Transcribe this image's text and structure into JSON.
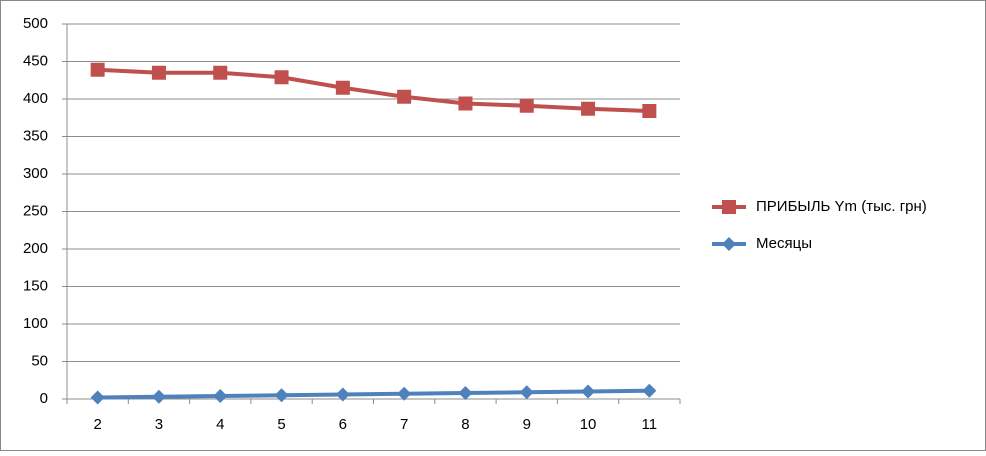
{
  "chart_data": {
    "type": "line",
    "categories": [
      "2",
      "3",
      "4",
      "5",
      "6",
      "7",
      "8",
      "9",
      "10",
      "11"
    ],
    "series": [
      {
        "name": "ПРИБЫЛЬ Ym (тыс. грн)",
        "color": "#c0504d",
        "marker": "square",
        "values": [
          439,
          435,
          435,
          429,
          415,
          403,
          394,
          391,
          387,
          384
        ]
      },
      {
        "name": "Месяцы",
        "color": "#4f81bd",
        "marker": "diamond",
        "values": [
          2,
          3,
          4,
          5,
          6,
          7,
          8,
          9,
          10,
          11
        ]
      }
    ],
    "ylim": [
      0,
      500
    ],
    "yticks": [
      0,
      50,
      100,
      150,
      200,
      250,
      300,
      350,
      400,
      450,
      500
    ],
    "grid": true,
    "legend": "right"
  }
}
